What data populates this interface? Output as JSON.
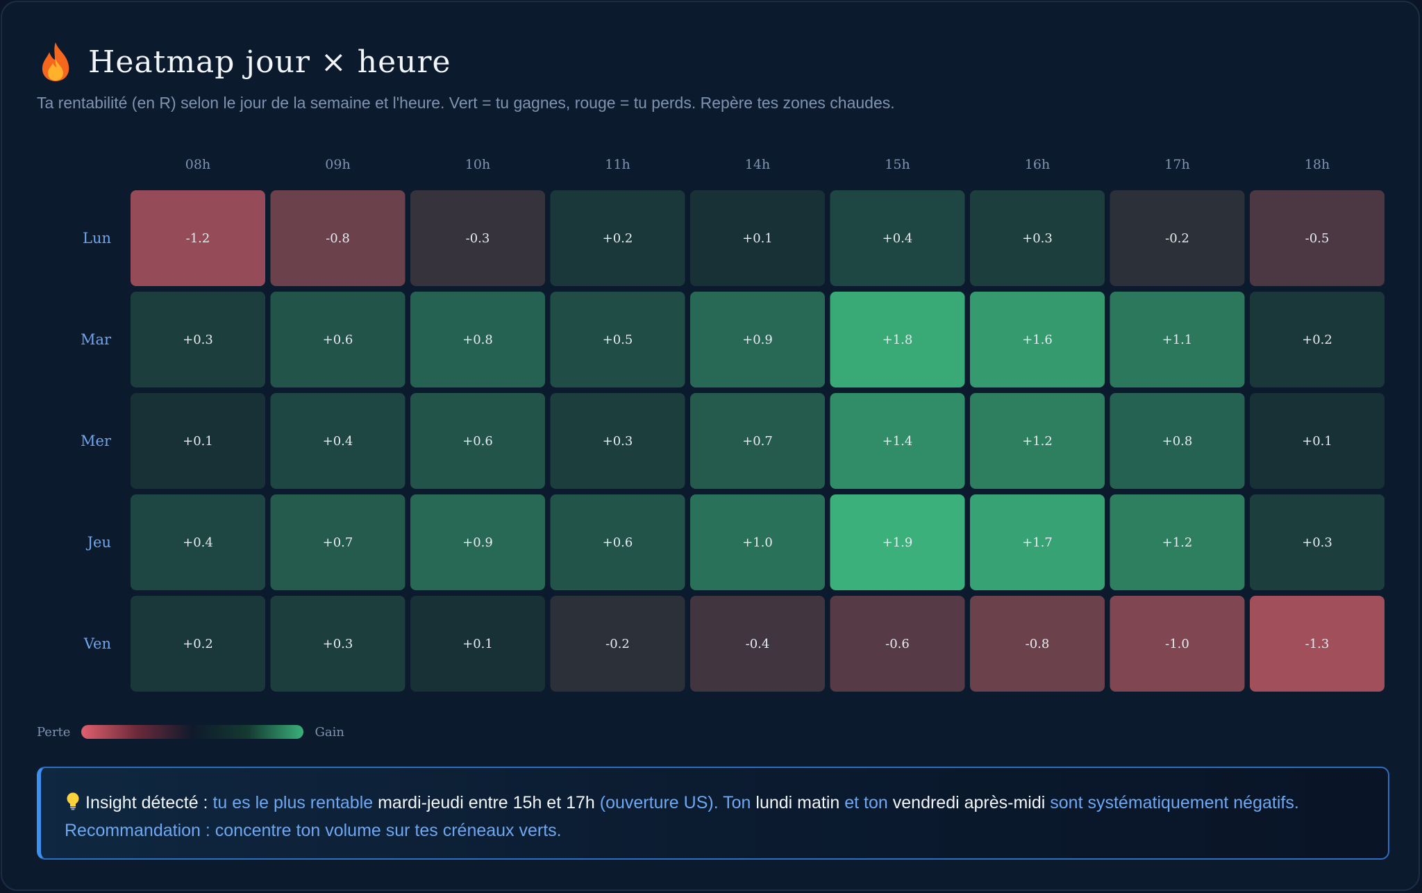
{
  "header": {
    "icon": "flame-icon",
    "title": "Heatmap jour × heure",
    "subtitle": "Ta rentabilité (en R) selon le jour de la semaine et l'heure. Vert = tu gagnes, rouge = tu perds. Repère tes zones chaudes."
  },
  "chart_data": {
    "type": "heatmap",
    "x": [
      "08h",
      "09h",
      "10h",
      "11h",
      "14h",
      "15h",
      "16h",
      "17h",
      "18h"
    ],
    "y": [
      "Lun",
      "Mar",
      "Mer",
      "Jeu",
      "Ven"
    ],
    "values": [
      [
        -1.2,
        -0.8,
        -0.3,
        0.2,
        0.1,
        0.4,
        0.3,
        -0.2,
        -0.5
      ],
      [
        0.3,
        0.6,
        0.8,
        0.5,
        0.9,
        1.8,
        1.6,
        1.1,
        0.2
      ],
      [
        0.1,
        0.4,
        0.6,
        0.3,
        0.7,
        1.4,
        1.2,
        0.8,
        0.1
      ],
      [
        0.4,
        0.7,
        0.9,
        0.6,
        1.0,
        1.9,
        1.7,
        1.2,
        0.3
      ],
      [
        0.2,
        0.3,
        0.1,
        -0.2,
        -0.4,
        -0.6,
        -0.8,
        -1.0,
        -1.3
      ]
    ],
    "labels": [
      [
        "-1.2",
        "-0.8",
        "-0.3",
        "+0.2",
        "+0.1",
        "+0.4",
        "+0.3",
        "-0.2",
        "-0.5"
      ],
      [
        "+0.3",
        "+0.6",
        "+0.8",
        "+0.5",
        "+0.9",
        "+1.8",
        "+1.6",
        "+1.1",
        "+0.2"
      ],
      [
        "+0.1",
        "+0.4",
        "+0.6",
        "+0.3",
        "+0.7",
        "+1.4",
        "+1.2",
        "+0.8",
        "+0.1"
      ],
      [
        "+0.4",
        "+0.7",
        "+0.9",
        "+0.6",
        "+1.0",
        "+1.9",
        "+1.7",
        "+1.2",
        "+0.3"
      ],
      [
        "+0.2",
        "+0.3",
        "+0.1",
        "-0.2",
        "-0.4",
        "-0.6",
        "-0.8",
        "-1.0",
        "-1.3"
      ]
    ],
    "colors": {
      "loss_max": "#e0606e",
      "neutral": "#162a33",
      "gain_max": "#3bb07a"
    },
    "color_scale_max": 1.9
  },
  "legend": {
    "low_label": "Perte",
    "high_label": "Gain"
  },
  "insight": {
    "icon": "lightbulb-icon",
    "parts": [
      "Insight détecté : ",
      "tu es le plus rentable ",
      "mardi-jeudi entre 15h et 17h ",
      "(ouverture US). Ton ",
      "lundi matin ",
      "et ton ",
      "vendredi après-midi ",
      "sont systématiquement négatifs. Recommandation : concentre ton volume sur tes créneaux verts."
    ]
  }
}
